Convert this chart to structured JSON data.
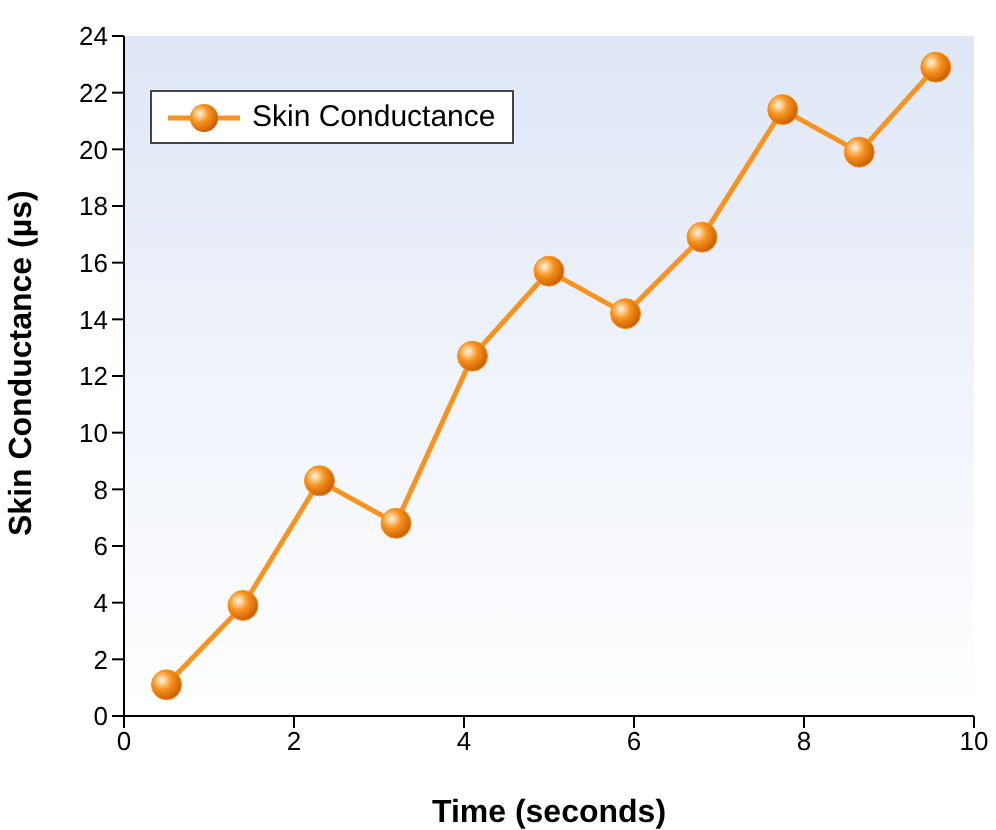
{
  "chart_data": {
    "type": "line",
    "xlabel": "Time (seconds)",
    "ylabel": "Skin Conductance (µs)",
    "x": [
      0.5,
      1.4,
      2.3,
      3.2,
      4.1,
      5.0,
      5.9,
      6.8,
      7.75,
      8.65,
      9.55
    ],
    "series": [
      {
        "name": "Skin Conductance",
        "color": "#f7931e",
        "values": [
          1.1,
          3.9,
          8.3,
          6.8,
          12.7,
          15.7,
          14.2,
          16.9,
          21.4,
          19.9,
          22.9
        ]
      }
    ],
    "xlim": [
      0,
      10
    ],
    "xticks": [
      0,
      2,
      4,
      6,
      8,
      10
    ],
    "ylim": [
      0,
      24
    ],
    "yticks": [
      0,
      2,
      4,
      6,
      8,
      10,
      12,
      14,
      16,
      18,
      20,
      22,
      24
    ],
    "marker": "circle",
    "line_style": "solid",
    "legend": "top left",
    "grid": false
  }
}
